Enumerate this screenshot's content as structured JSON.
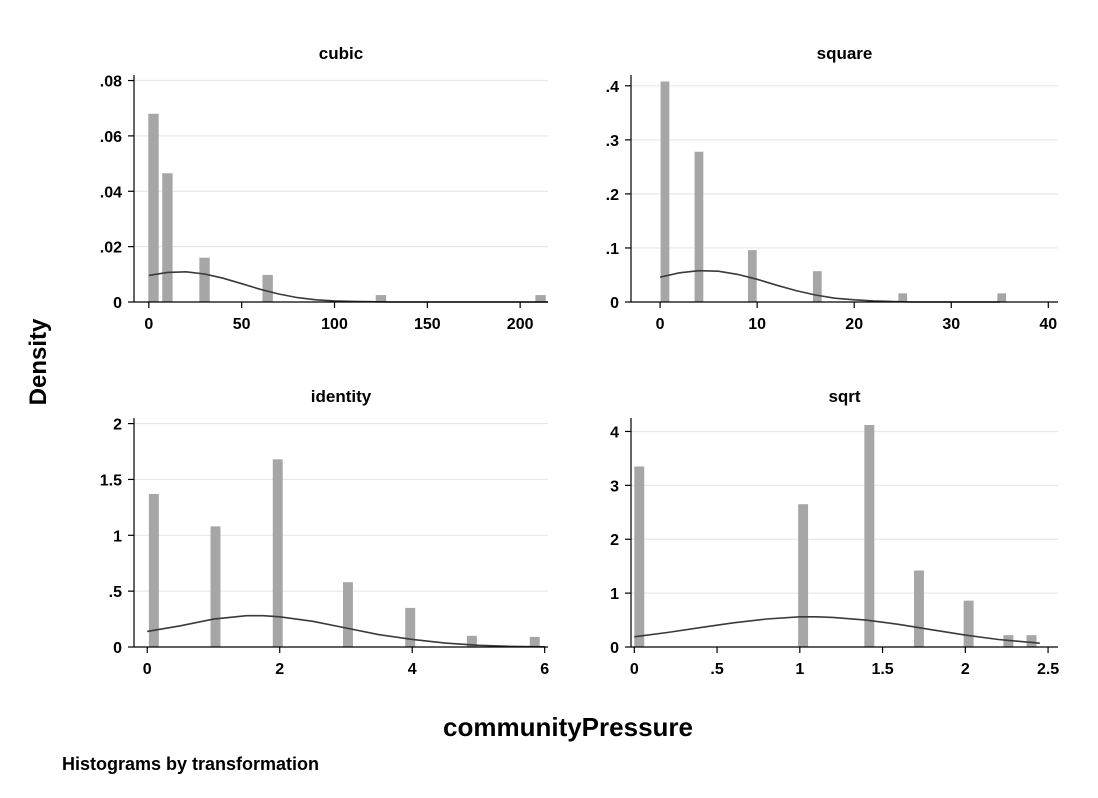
{
  "figure": {
    "ylabel": "Density",
    "xlabel": "communityPressure",
    "note": "Histograms by transformation",
    "colors": {
      "bar": "#a6a6a6",
      "curve": "#3a3a3a",
      "grid": "#e8e8e8",
      "axis": "#000000"
    }
  },
  "chart_data": [
    {
      "type": "bar",
      "title": "cubic",
      "xlim": [
        -8,
        215
      ],
      "ylim": [
        0,
        0.082
      ],
      "xticks": [
        0,
        50,
        100,
        150,
        200
      ],
      "xtick_labels": [
        "0",
        "50",
        "100",
        "150",
        "200"
      ],
      "yticks": [
        0,
        0.02,
        0.04,
        0.06,
        0.08
      ],
      "ytick_labels": [
        "0",
        ".02",
        ".04",
        ".06",
        ".08"
      ],
      "grid": true,
      "bar_width": 5.6,
      "bars": [
        {
          "x": 2.5,
          "y": 0.068
        },
        {
          "x": 10.0,
          "y": 0.0465
        },
        {
          "x": 30.0,
          "y": 0.016
        },
        {
          "x": 64.0,
          "y": 0.0098
        },
        {
          "x": 125.0,
          "y": 0.0025
        },
        {
          "x": 211.0,
          "y": 0.0025
        }
      ],
      "curve": {
        "x": [
          0,
          10,
          20,
          30,
          40,
          50,
          60,
          70,
          80,
          90,
          100,
          110,
          120,
          130,
          140,
          150,
          175,
          200,
          215
        ],
        "y": [
          0.0096,
          0.0107,
          0.0109,
          0.0101,
          0.0086,
          0.0066,
          0.0046,
          0.0029,
          0.0016,
          0.0008,
          0.0004,
          0.0002,
          0.0001,
          0.0,
          0.0,
          0.0,
          0.0,
          0.0,
          0.0
        ]
      }
    },
    {
      "type": "bar",
      "title": "square",
      "xlim": [
        -3,
        41
      ],
      "ylim": [
        0,
        0.42
      ],
      "xticks": [
        0,
        10,
        20,
        30,
        40
      ],
      "xtick_labels": [
        "0",
        "10",
        "20",
        "30",
        "40"
      ],
      "yticks": [
        0,
        0.1,
        0.2,
        0.3,
        0.4
      ],
      "ytick_labels": [
        "0",
        ".1",
        ".2",
        ".3",
        ".4"
      ],
      "grid": true,
      "bar_width": 0.9,
      "bars": [
        {
          "x": 0.5,
          "y": 0.408
        },
        {
          "x": 4.0,
          "y": 0.278
        },
        {
          "x": 9.5,
          "y": 0.096
        },
        {
          "x": 16.2,
          "y": 0.057
        },
        {
          "x": 25.0,
          "y": 0.016
        },
        {
          "x": 35.2,
          "y": 0.016
        }
      ],
      "curve": {
        "x": [
          0,
          2,
          4,
          6,
          8,
          10,
          12,
          14,
          16,
          18,
          20,
          22,
          24,
          26,
          28,
          30,
          32,
          35
        ],
        "y": [
          0.046,
          0.054,
          0.058,
          0.057,
          0.051,
          0.042,
          0.031,
          0.021,
          0.013,
          0.007,
          0.004,
          0.002,
          0.001,
          0.0,
          0.0,
          0.0,
          0.0,
          0.0
        ]
      }
    },
    {
      "type": "bar",
      "title": "identity",
      "xlim": [
        -0.2,
        6.05
      ],
      "ylim": [
        0,
        2.05
      ],
      "xticks": [
        0,
        2,
        4,
        6
      ],
      "xtick_labels": [
        "0",
        "2",
        "4",
        "6"
      ],
      "yticks": [
        0,
        0.5,
        1,
        1.5,
        2
      ],
      "ytick_labels": [
        "0",
        ".5",
        "1",
        "1.5",
        "2"
      ],
      "grid": true,
      "bar_width": 0.15,
      "bars": [
        {
          "x": 0.1,
          "y": 1.37
        },
        {
          "x": 1.03,
          "y": 1.08
        },
        {
          "x": 1.97,
          "y": 1.68
        },
        {
          "x": 3.03,
          "y": 0.58
        },
        {
          "x": 3.97,
          "y": 0.35
        },
        {
          "x": 4.9,
          "y": 0.1
        },
        {
          "x": 5.85,
          "y": 0.09
        }
      ],
      "curve": {
        "x": [
          0,
          0.5,
          1,
          1.5,
          1.75,
          2,
          2.5,
          3,
          3.5,
          4,
          4.5,
          5,
          5.5,
          6
        ],
        "y": [
          0.14,
          0.19,
          0.25,
          0.28,
          0.28,
          0.27,
          0.23,
          0.17,
          0.11,
          0.068,
          0.035,
          0.015,
          0.005,
          0.002
        ]
      }
    },
    {
      "type": "bar",
      "title": "sqrt",
      "xlim": [
        -0.02,
        2.56
      ],
      "ylim": [
        0,
        4.25
      ],
      "xticks": [
        0,
        0.5,
        1,
        1.5,
        2,
        2.5
      ],
      "xtick_labels": [
        "0",
        ".5",
        "1",
        "1.5",
        "2",
        "2.5"
      ],
      "yticks": [
        0,
        1,
        2,
        3,
        4
      ],
      "ytick_labels": [
        "0",
        "1",
        "2",
        "3",
        "4"
      ],
      "grid": true,
      "bar_width": 0.06,
      "bars": [
        {
          "x": 0.03,
          "y": 3.35
        },
        {
          "x": 1.02,
          "y": 2.65
        },
        {
          "x": 1.42,
          "y": 4.12
        },
        {
          "x": 1.72,
          "y": 1.42
        },
        {
          "x": 2.02,
          "y": 0.86
        },
        {
          "x": 2.26,
          "y": 0.22
        },
        {
          "x": 2.4,
          "y": 0.22
        }
      ],
      "curve": {
        "x": [
          0,
          0.2,
          0.4,
          0.6,
          0.8,
          1.0,
          1.1,
          1.2,
          1.4,
          1.6,
          1.8,
          2.0,
          2.2,
          2.45
        ],
        "y": [
          0.19,
          0.27,
          0.36,
          0.45,
          0.52,
          0.56,
          0.56,
          0.55,
          0.5,
          0.42,
          0.32,
          0.22,
          0.14,
          0.07
        ]
      }
    }
  ]
}
